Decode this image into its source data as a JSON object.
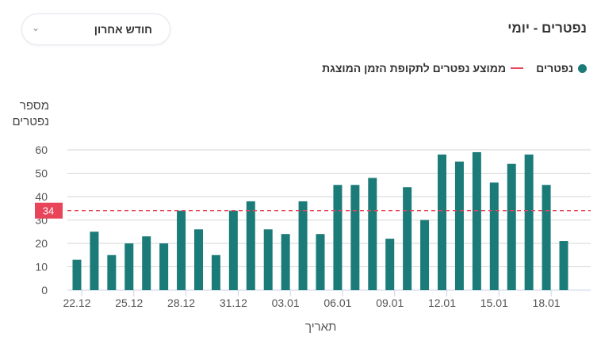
{
  "header": {
    "title": "נפטרים - יומי",
    "period_select": {
      "selected": "חודש אחרון",
      "icon": "chevron-down-icon"
    }
  },
  "colors": {
    "bar": "#1b7b78",
    "average": "#e8445a"
  },
  "chart_data": {
    "type": "bar",
    "legend": {
      "series": "נפטרים",
      "average": "ממוצע נפטרים לתקופת הזמן המוצגת",
      "placement": "top-right"
    },
    "ylabel": "מספר נפטרים",
    "xlabel": "תאריך",
    "ylim": [
      0,
      60
    ],
    "yticks": [
      0,
      10,
      20,
      30,
      40,
      50,
      60
    ],
    "grid": true,
    "categories": [
      "22.12",
      "23.12",
      "24.12",
      "25.12",
      "26.12",
      "27.12",
      "28.12",
      "29.12",
      "30.12",
      "31.12",
      "01.01",
      "02.01",
      "03.01",
      "04.01",
      "05.01",
      "06.01",
      "07.01",
      "08.01",
      "09.01",
      "10.01",
      "11.01",
      "12.01",
      "13.01",
      "14.01",
      "15.01",
      "16.01",
      "17.01",
      "18.01",
      "19.01"
    ],
    "xtick_labels": [
      "22.12",
      "25.12",
      "28.12",
      "31.12",
      "03.01",
      "06.01",
      "09.01",
      "12.01",
      "15.01",
      "18.01"
    ],
    "series": [
      {
        "name": "נפטרים",
        "values": [
          13,
          25,
          15,
          20,
          23,
          20,
          34,
          26,
          15,
          34,
          38,
          26,
          24,
          38,
          24,
          45,
          45,
          48,
          22,
          44,
          30,
          58,
          55,
          59,
          46,
          54,
          58,
          45,
          21
        ]
      }
    ],
    "average": {
      "value": 34,
      "label": "34"
    }
  }
}
